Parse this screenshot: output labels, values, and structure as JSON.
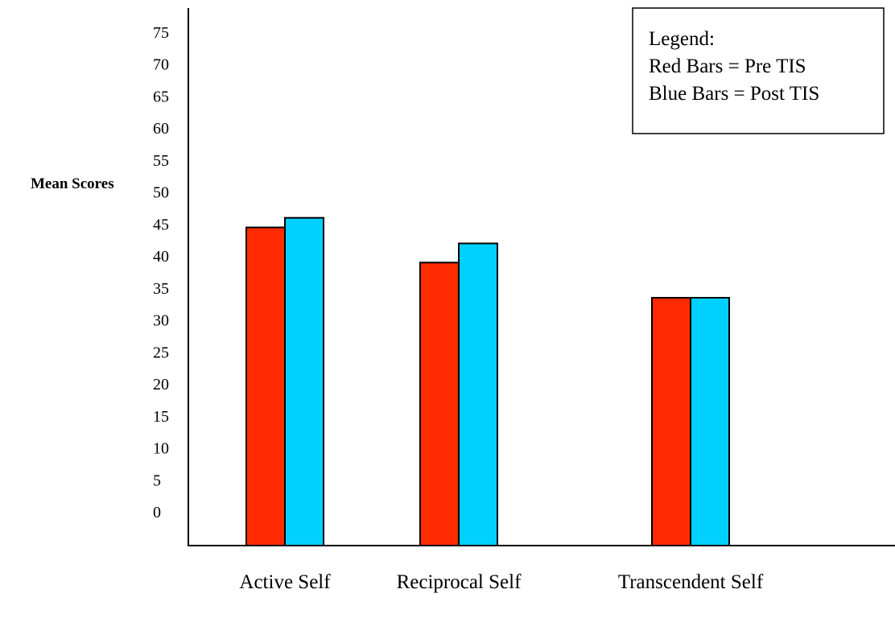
{
  "chart_data": {
    "type": "bar",
    "ylabel": "Mean Scores",
    "xlabel": "",
    "ylim": [
      0,
      75
    ],
    "yticks": [
      0,
      5,
      10,
      15,
      20,
      25,
      30,
      35,
      40,
      45,
      50,
      55,
      60,
      65,
      70,
      75
    ],
    "categories": [
      "Active Self",
      "Reciprocal Self",
      "Transcendent Self"
    ],
    "series": [
      {
        "values": [
          49,
          43.5,
          38
        ],
        "color": "#ff2a00"
      },
      {
        "values": [
          50.5,
          46.5,
          38
        ],
        "color": "#00d0ff"
      }
    ],
    "legend": {
      "placement": "top-right",
      "lines": [
        "Legend:",
        "Red Bars = Pre TIS",
        "Blue Bars = Post TIS"
      ]
    },
    "grid": false
  }
}
